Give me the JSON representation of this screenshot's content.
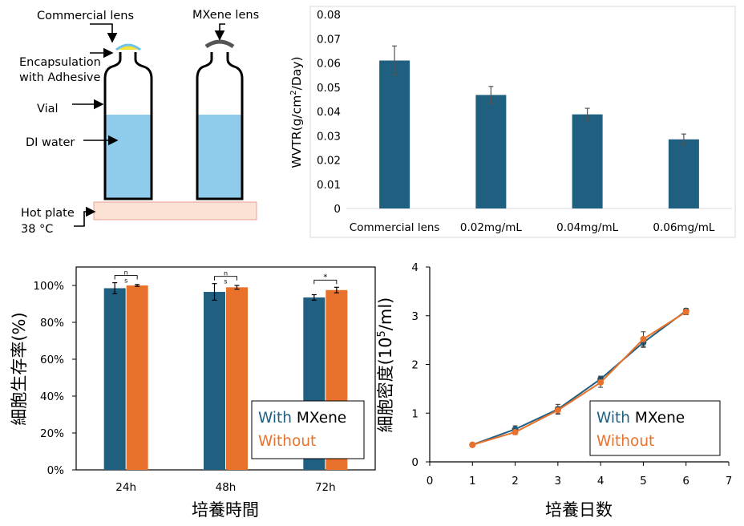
{
  "colors": {
    "blue": "#1F5F7F",
    "orange": "#E8722C",
    "water": "#8FCBEA",
    "hotplate": "#FCE1D5",
    "hotplate_border": "#E8A090"
  },
  "schematic": {
    "labels": {
      "commercial_lens": "Commercial lens",
      "mxene_lens": "MXene lens",
      "encapsulation_1": "Encapsulation",
      "encapsulation_2": "with Adhesive",
      "vial": "Vial",
      "di_water": "DI water",
      "hot_plate_1": "Hot plate",
      "hot_plate_2": "38 °C"
    }
  },
  "chart_data": [
    {
      "type": "bar",
      "title": "",
      "ylabel_parts": [
        "WVTR(g/cm",
        "2",
        "/Day)"
      ],
      "categories": [
        "Commercial lens",
        "0.02mg/mL",
        "0.04mg/mL",
        "0.06mg/mL"
      ],
      "values": [
        0.061,
        0.0468,
        0.0388,
        0.0285
      ],
      "errors": [
        0.006,
        0.0035,
        0.0025,
        0.0022
      ],
      "ylim": [
        0,
        0.08
      ],
      "yticks": [
        "0",
        "0.01",
        "0.02",
        "0.03",
        "0.04",
        "0.05",
        "0.06",
        "0.07",
        "0.08"
      ],
      "grid": false
    },
    {
      "type": "bar",
      "title": "",
      "xlabel": "培養時間",
      "ylabel": "細胞生存率(%)",
      "categories": [
        "24h",
        "48h",
        "72h"
      ],
      "series": [
        {
          "name": "With",
          "values": [
            98.5,
            96.5,
            93.5
          ],
          "errors": [
            3,
            4.5,
            1.5
          ]
        },
        {
          "name": "Without",
          "values": [
            100,
            99,
            97.5
          ],
          "errors": [
            0.5,
            1,
            1.5
          ]
        }
      ],
      "ylim": [
        0,
        100
      ],
      "yticks": [
        "0%",
        "20%",
        "40%",
        "60%",
        "80%",
        "100%"
      ],
      "significance": [
        "ns",
        "ns",
        "*"
      ],
      "legend": {
        "line1_a": "With ",
        "line1_b": "MXene",
        "line2": "Without",
        "placement": "bottom-right"
      },
      "grid": false
    },
    {
      "type": "line",
      "title": "",
      "xlabel": "培養日数",
      "ylabel_parts": [
        "細胞密度(10",
        "5",
        "/ml)"
      ],
      "x": [
        1,
        2,
        3,
        4,
        5,
        6
      ],
      "series": [
        {
          "name": "With",
          "values": [
            0.35,
            0.67,
            1.08,
            1.7,
            2.45,
            3.1
          ],
          "errors": [
            0.03,
            0.07,
            0.1,
            0.06,
            0.1,
            0.05
          ]
        },
        {
          "name": "Without",
          "values": [
            0.35,
            0.61,
            1.06,
            1.63,
            2.52,
            3.08
          ],
          "errors": [
            0.03,
            0.05,
            0.07,
            0.1,
            0.15,
            0.06
          ]
        }
      ],
      "xlim": [
        0,
        7
      ],
      "ylim": [
        0,
        4
      ],
      "xticks": [
        "0",
        "1",
        "2",
        "3",
        "4",
        "5",
        "6",
        "7"
      ],
      "yticks": [
        "0",
        "1",
        "2",
        "3",
        "4"
      ],
      "legend": {
        "line1_a": "With ",
        "line1_b": "MXene",
        "line2": "Without",
        "placement": "bottom-right"
      },
      "grid": false
    }
  ]
}
